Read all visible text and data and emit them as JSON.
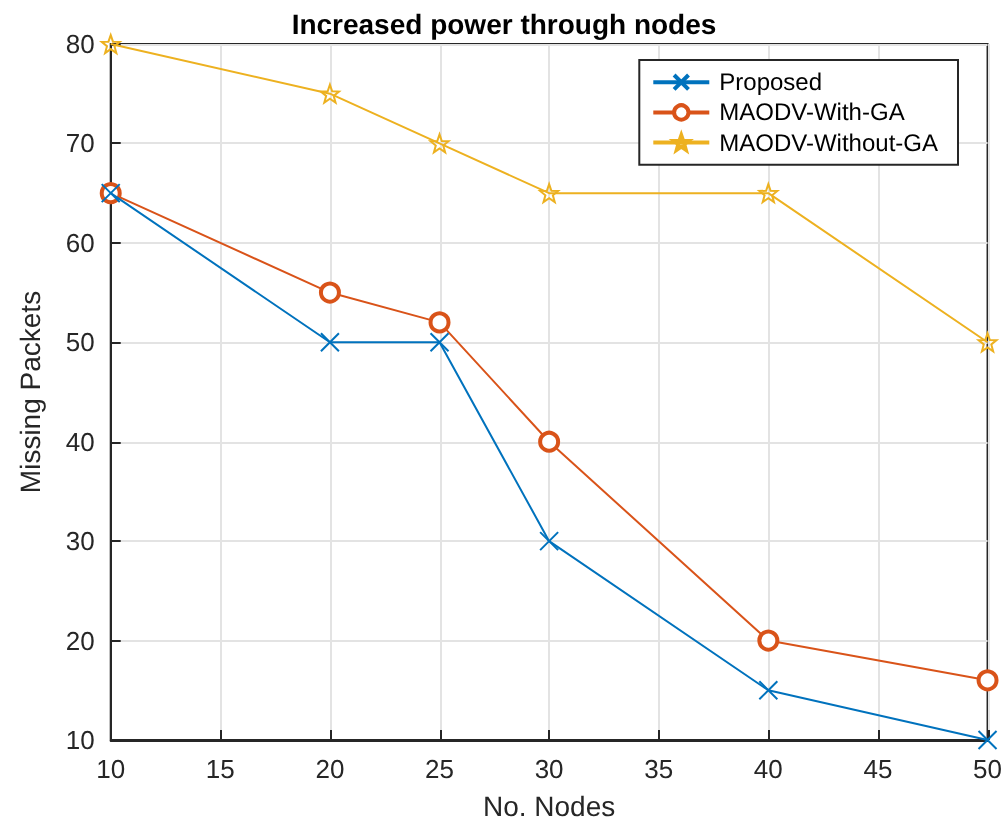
{
  "chart_data": {
    "type": "line",
    "title": "Increased power through nodes",
    "xlabel": "No. Nodes",
    "ylabel": "Missing Packets",
    "x": [
      10,
      20,
      25,
      30,
      40,
      50
    ],
    "series": [
      {
        "name": "Proposed",
        "color": "#0072bd",
        "marker": "cross",
        "values": [
          65,
          50,
          50,
          30,
          15,
          10
        ]
      },
      {
        "name": "MAODV-With-GA",
        "color": "#d95319",
        "marker": "circle",
        "values": [
          65,
          55,
          52,
          40,
          20,
          16
        ]
      },
      {
        "name": "MAODV-Without-GA",
        "color": "#edb120",
        "marker": "star",
        "values": [
          80,
          75,
          70,
          65,
          65,
          50
        ]
      }
    ],
    "xlim": [
      10,
      50
    ],
    "xticks": [
      10,
      15,
      20,
      25,
      30,
      35,
      40,
      45,
      50
    ],
    "ylim": [
      10,
      80
    ],
    "yticks": [
      10,
      20,
      30,
      40,
      50,
      60,
      70,
      80
    ],
    "grid": true,
    "legend": "top right"
  }
}
